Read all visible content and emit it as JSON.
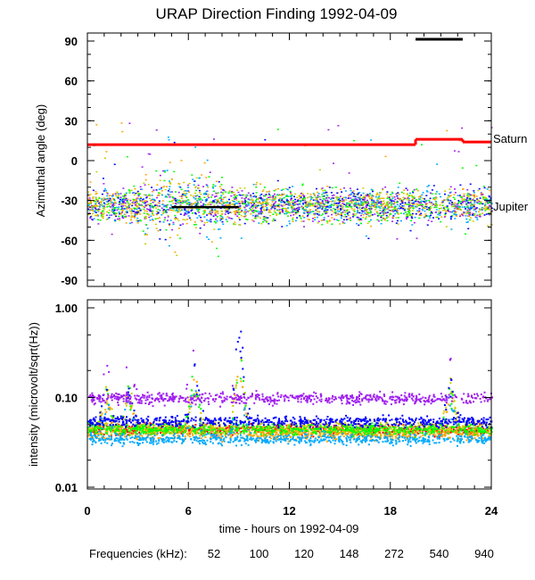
{
  "chart_data": [
    {
      "type": "scatter",
      "title": "URAP Direction Finding  1992-04-09",
      "ylabel": "Azimuthal angle (deg)",
      "xlabel": "time - hours on 1992-04-09",
      "xlim": [
        0,
        24
      ],
      "ylim": [
        -95,
        95
      ],
      "xticks": [
        "0",
        "6",
        "12",
        "18",
        "24"
      ],
      "yticks": [
        90,
        60,
        30,
        0,
        -30,
        -60,
        -90
      ],
      "ytick_labels": [
        "90",
        "60",
        "30",
        "0",
        "-30",
        "-60",
        "-90"
      ],
      "annotations": {
        "saturn": "Saturn",
        "jupiter": "Jupiter"
      },
      "saturn_line": {
        "color": "#ff0000",
        "segments": [
          [
            0,
            19.5,
            12
          ],
          [
            19.5,
            22.3,
            16
          ],
          [
            22.3,
            24,
            14
          ]
        ]
      },
      "jupiter_line": {
        "color": "#000000",
        "segments": [
          [
            5,
            9,
            -35
          ]
        ]
      },
      "gap_marker": {
        "color": "#000000",
        "segments": [
          [
            19.5,
            22.3,
            88
          ]
        ]
      },
      "scatter_summary": {
        "center_deg": -33,
        "spread_deg": 8,
        "wide_spread_interval_hours": [
          3,
          8
        ],
        "wide_spread_deg": 18
      }
    },
    {
      "type": "scatter",
      "ylabel": "intensity (microvolt/sqrt(Hz))",
      "xlabel": "time - hours on 1992-04-09",
      "yscale": "log",
      "ylim": [
        0.01,
        1.0
      ],
      "yticks": [
        1.0,
        0.1,
        0.01
      ],
      "ytick_labels": [
        "1.00",
        "0.10",
        "0.01"
      ],
      "xticks": [
        "0",
        "6",
        "12",
        "18",
        "24"
      ],
      "legend_title": "Frequencies (kHz):",
      "series": [
        {
          "name": "52",
          "color": "#ff0000",
          "baseline": 0.045
        },
        {
          "name": "100",
          "color": "#ffa500",
          "baseline": 0.04
        },
        {
          "name": "120",
          "color": "#cccc00",
          "baseline": 0.047
        },
        {
          "name": "148",
          "color": "#00ff00",
          "baseline": 0.045
        },
        {
          "name": "272",
          "color": "#00aaff",
          "baseline": 0.035
        },
        {
          "name": "540",
          "color": "#0000ff",
          "baseline": 0.055
        },
        {
          "name": "940",
          "color": "#a020f0",
          "baseline": 0.1
        }
      ],
      "peaks": [
        {
          "hour": 9.0,
          "value": 0.8
        },
        {
          "hour": 6.3,
          "value": 0.45
        },
        {
          "hour": 21.5,
          "value": 0.25
        },
        {
          "hour": 1.1,
          "value": 0.23
        },
        {
          "hour": 2.4,
          "value": 0.22
        }
      ]
    }
  ]
}
